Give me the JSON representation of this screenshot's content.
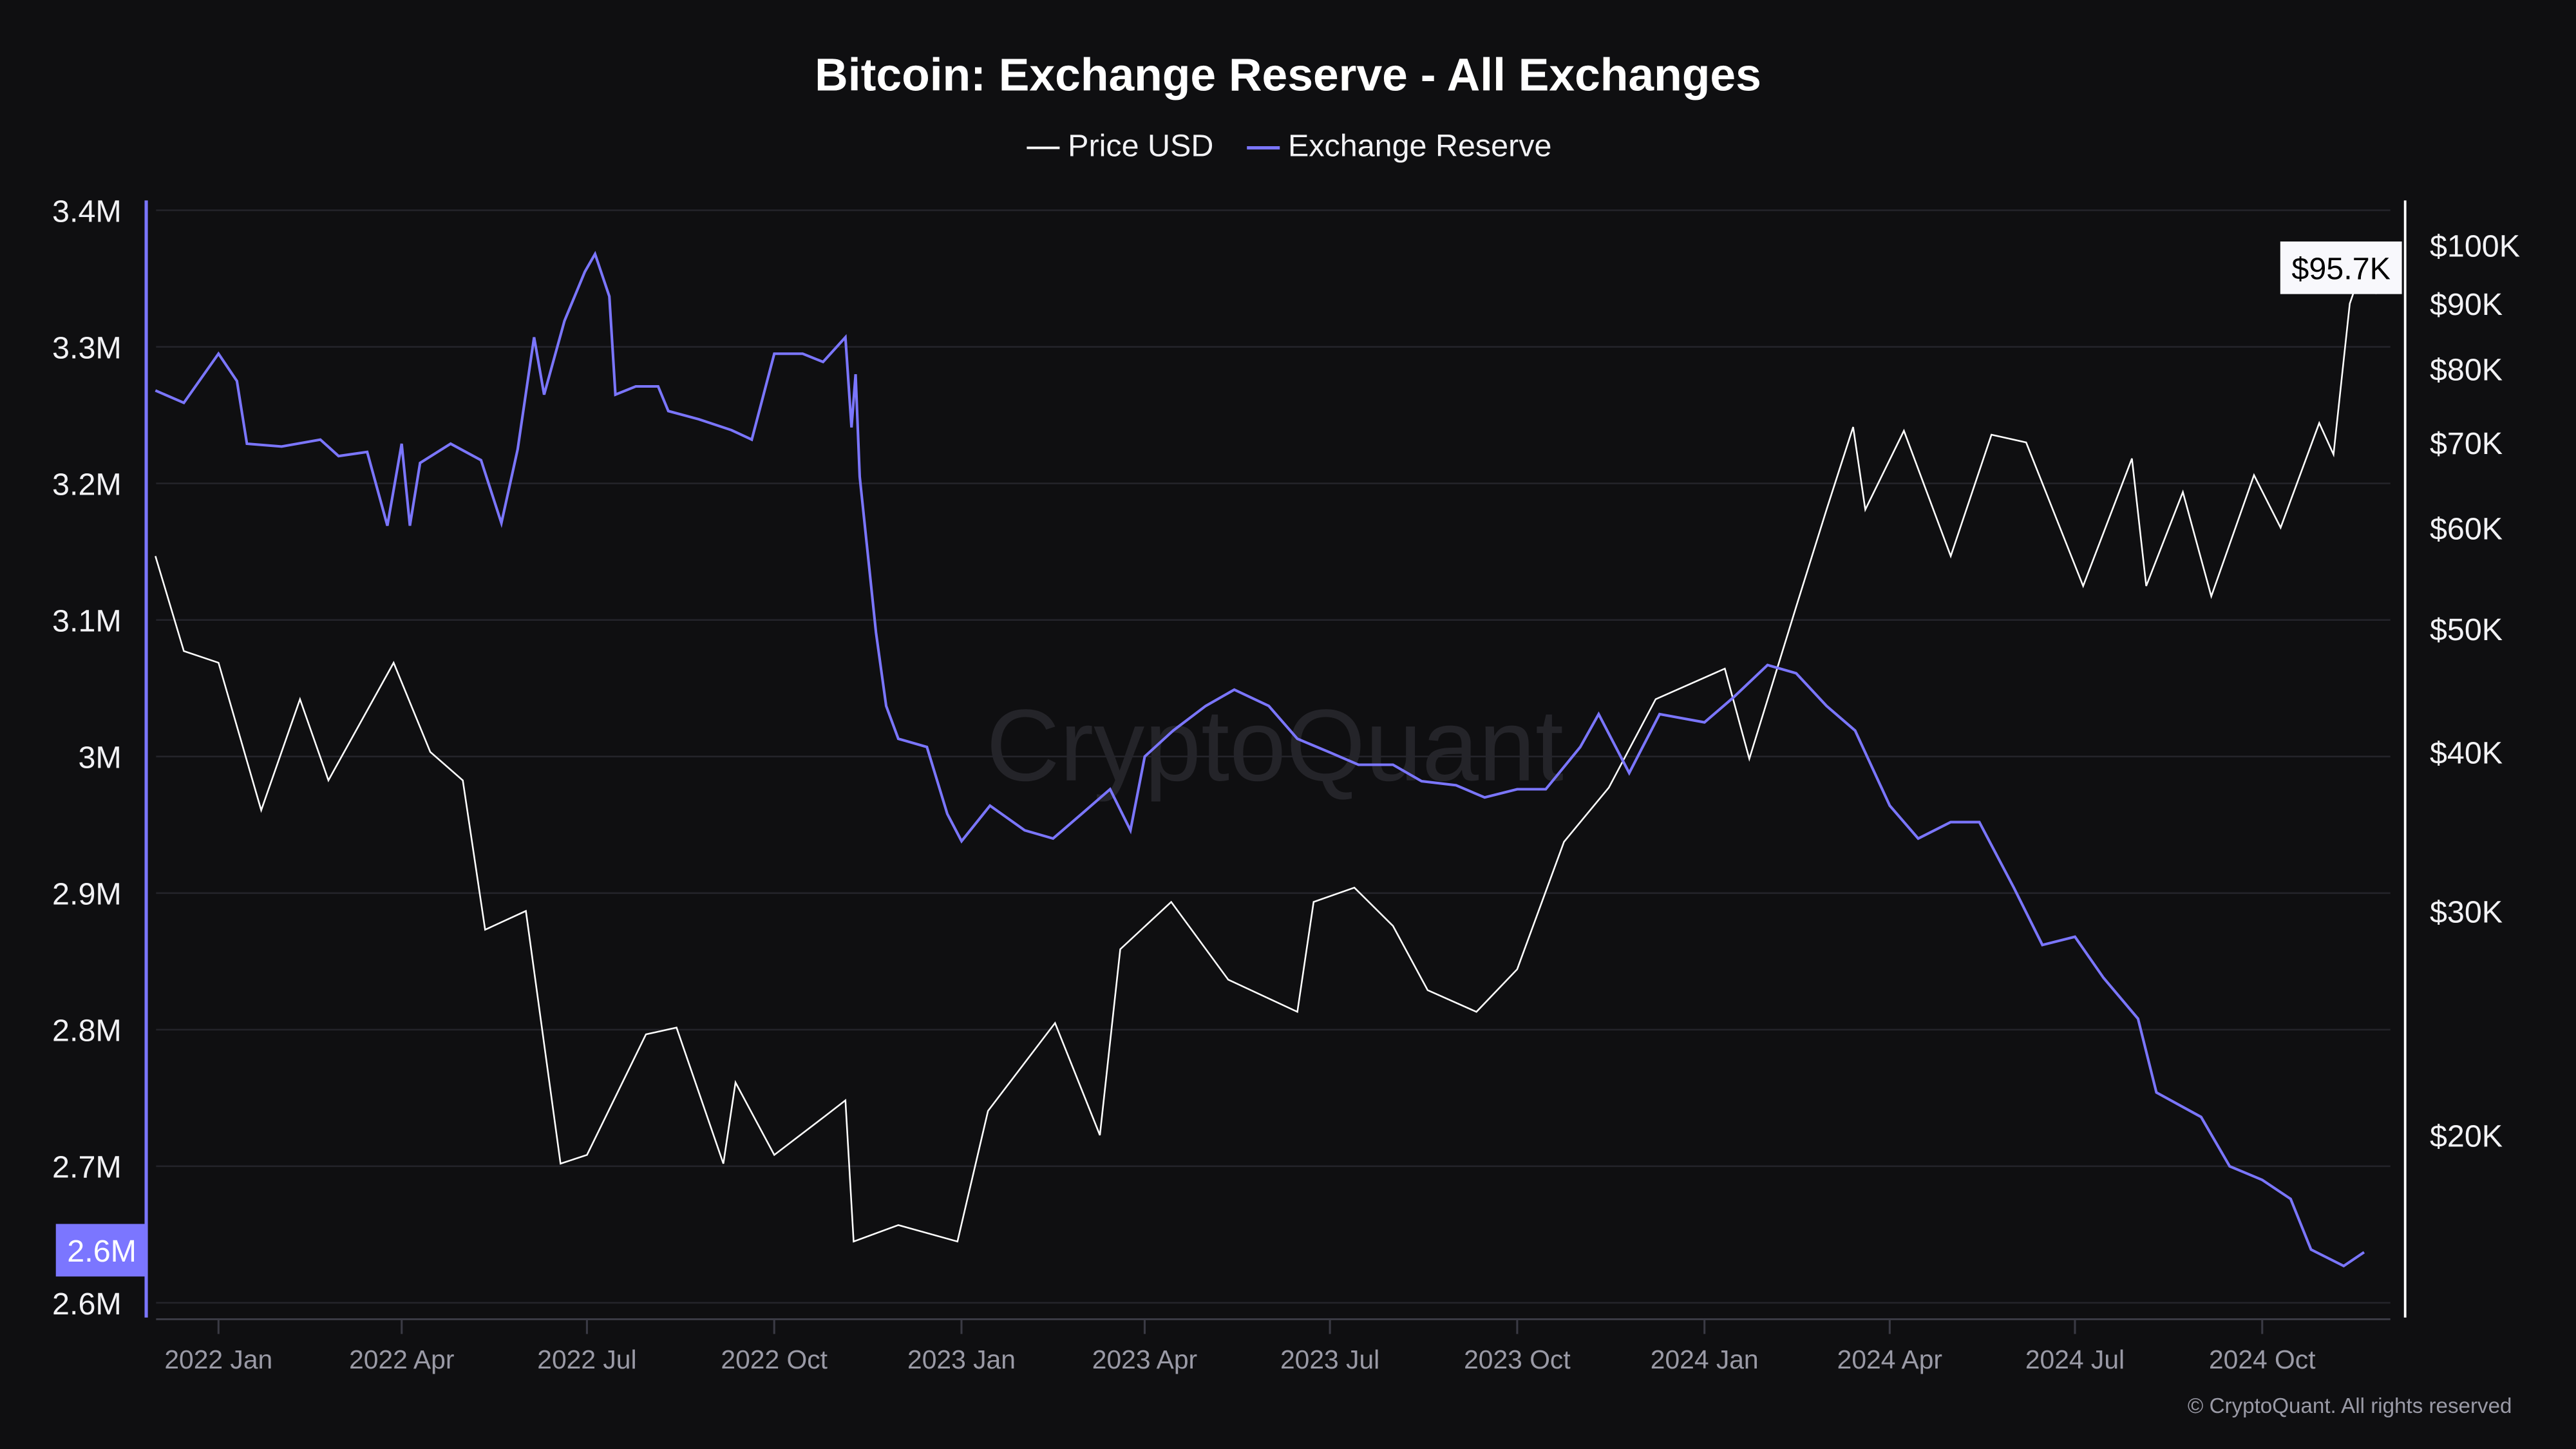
{
  "chart_data": {
    "type": "line",
    "title": "Bitcoin: Exchange Reserve - All Exchanges",
    "legend": {
      "placement": "top-center",
      "entries": [
        "Price USD",
        "Exchange Reserve"
      ]
    },
    "grid": true,
    "watermark": "CryptoQuant",
    "footer": "© CryptoQuant. All rights reserved",
    "colors": {
      "background": "#0f0f11",
      "price": "#ffffff",
      "reserve": "#7b76ff",
      "grid": "#24242a",
      "xlabels": "#9a9aa6"
    },
    "x_axis": {
      "type": "date",
      "range": [
        "2021-12-01",
        "2024-12-20"
      ],
      "ticks": [
        {
          "date": "2022-01-01",
          "label": "2022 Jan"
        },
        {
          "date": "2022-04-01",
          "label": "2022 Apr"
        },
        {
          "date": "2022-07-01",
          "label": "2022 Jul"
        },
        {
          "date": "2022-10-01",
          "label": "2022 Oct"
        },
        {
          "date": "2023-01-01",
          "label": "2023 Jan"
        },
        {
          "date": "2023-04-01",
          "label": "2023 Apr"
        },
        {
          "date": "2023-07-01",
          "label": "2023 Jul"
        },
        {
          "date": "2023-10-01",
          "label": "2023 Oct"
        },
        {
          "date": "2024-01-01",
          "label": "2024 Jan"
        },
        {
          "date": "2024-04-01",
          "label": "2024 Apr"
        },
        {
          "date": "2024-07-01",
          "label": "2024 Jul"
        },
        {
          "date": "2024-10-01",
          "label": "2024 Oct"
        }
      ]
    },
    "y_left": {
      "series": "Exchange Reserve",
      "range": [
        2.6,
        3.4
      ],
      "unit": "BTC (millions)",
      "ticks": [
        {
          "value": 3.4,
          "label": "3.4M"
        },
        {
          "value": 3.3,
          "label": "3.3M"
        },
        {
          "value": 3.2,
          "label": "3.2M"
        },
        {
          "value": 3.1,
          "label": "3.1M"
        },
        {
          "value": 3.0,
          "label": "3M"
        },
        {
          "value": 2.9,
          "label": "2.9M"
        },
        {
          "value": 2.8,
          "label": "2.8M"
        },
        {
          "value": 2.7,
          "label": "2.7M"
        },
        {
          "value": 2.6,
          "label": "2.6M"
        }
      ],
      "current_label": "2.6M"
    },
    "y_right": {
      "series": "Price USD",
      "scale": "log",
      "range": [
        13000,
        105000
      ],
      "ticks": [
        {
          "value": 100000,
          "label": "$100K"
        },
        {
          "value": 90000,
          "label": "$90K"
        },
        {
          "value": 80000,
          "label": "$80K"
        },
        {
          "value": 70000,
          "label": "$70K"
        },
        {
          "value": 60000,
          "label": "$60K"
        },
        {
          "value": 50000,
          "label": "$50K"
        },
        {
          "value": 40000,
          "label": "$40K"
        },
        {
          "value": 30000,
          "label": "$30K"
        },
        {
          "value": 20000,
          "label": "$20K"
        }
      ],
      "current_label": "$95.7K"
    },
    "series": [
      {
        "name": "Price USD",
        "axis": "right",
        "points": [
          [
            "2021-12-01",
            57000
          ],
          [
            "2021-12-15",
            48000
          ],
          [
            "2022-01-01",
            47000
          ],
          [
            "2022-01-22",
            36000
          ],
          [
            "2022-02-10",
            44000
          ],
          [
            "2022-02-24",
            38000
          ],
          [
            "2022-03-28",
            47000
          ],
          [
            "2022-04-15",
            40000
          ],
          [
            "2022-05-01",
            38000
          ],
          [
            "2022-05-12",
            29000
          ],
          [
            "2022-06-01",
            30000
          ],
          [
            "2022-06-18",
            19000
          ],
          [
            "2022-07-01",
            19300
          ],
          [
            "2022-07-30",
            24000
          ],
          [
            "2022-08-14",
            24300
          ],
          [
            "2022-09-06",
            19000
          ],
          [
            "2022-09-12",
            22000
          ],
          [
            "2022-10-01",
            19300
          ],
          [
            "2022-10-26",
            20700
          ],
          [
            "2022-11-05",
            21300
          ],
          [
            "2022-11-09",
            16500
          ],
          [
            "2022-12-01",
            17000
          ],
          [
            "2022-12-30",
            16500
          ],
          [
            "2023-01-14",
            20900
          ],
          [
            "2023-02-16",
            24500
          ],
          [
            "2023-03-10",
            20000
          ],
          [
            "2023-03-20",
            28000
          ],
          [
            "2023-04-14",
            30500
          ],
          [
            "2023-05-12",
            26500
          ],
          [
            "2023-06-15",
            25000
          ],
          [
            "2023-06-23",
            30500
          ],
          [
            "2023-07-13",
            31300
          ],
          [
            "2023-08-01",
            29200
          ],
          [
            "2023-08-18",
            26000
          ],
          [
            "2023-09-11",
            25000
          ],
          [
            "2023-10-01",
            27000
          ],
          [
            "2023-10-24",
            34000
          ],
          [
            "2023-11-15",
            37500
          ],
          [
            "2023-12-08",
            44000
          ],
          [
            "2024-01-11",
            46500
          ],
          [
            "2024-01-23",
            39500
          ],
          [
            "2024-02-15",
            52000
          ],
          [
            "2024-03-01",
            62000
          ],
          [
            "2024-03-14",
            72000
          ],
          [
            "2024-03-20",
            62000
          ],
          [
            "2024-04-08",
            71500
          ],
          [
            "2024-05-01",
            57000
          ],
          [
            "2024-05-21",
            71000
          ],
          [
            "2024-06-07",
            70000
          ],
          [
            "2024-07-05",
            54000
          ],
          [
            "2024-07-29",
            68000
          ],
          [
            "2024-08-05",
            54000
          ],
          [
            "2024-08-23",
            64000
          ],
          [
            "2024-09-06",
            53000
          ],
          [
            "2024-09-27",
            66000
          ],
          [
            "2024-10-10",
            60000
          ],
          [
            "2024-10-29",
            72500
          ],
          [
            "2024-11-05",
            68500
          ],
          [
            "2024-11-13",
            90000
          ],
          [
            "2024-11-22",
            99000
          ],
          [
            "2024-11-26",
            92000
          ],
          [
            "2024-12-01",
            97000
          ],
          [
            "2024-12-03",
            95700
          ]
        ]
      },
      {
        "name": "Exchange Reserve",
        "axis": "left",
        "points": [
          [
            "2021-12-01",
            3.268
          ],
          [
            "2021-12-15",
            3.259
          ],
          [
            "2022-01-01",
            3.295
          ],
          [
            "2022-01-10",
            3.275
          ],
          [
            "2022-01-15",
            3.229
          ],
          [
            "2022-02-01",
            3.227
          ],
          [
            "2022-02-20",
            3.232
          ],
          [
            "2022-03-01",
            3.22
          ],
          [
            "2022-03-15",
            3.223
          ],
          [
            "2022-03-25",
            3.169
          ],
          [
            "2022-04-01",
            3.229
          ],
          [
            "2022-04-05",
            3.169
          ],
          [
            "2022-04-10",
            3.215
          ],
          [
            "2022-04-25",
            3.229
          ],
          [
            "2022-05-10",
            3.217
          ],
          [
            "2022-05-20",
            3.171
          ],
          [
            "2022-05-28",
            3.225
          ],
          [
            "2022-06-05",
            3.307
          ],
          [
            "2022-06-10",
            3.265
          ],
          [
            "2022-06-20",
            3.319
          ],
          [
            "2022-06-30",
            3.355
          ],
          [
            "2022-07-05",
            3.368
          ],
          [
            "2022-07-12",
            3.337
          ],
          [
            "2022-07-15",
            3.265
          ],
          [
            "2022-07-25",
            3.271
          ],
          [
            "2022-08-05",
            3.271
          ],
          [
            "2022-08-10",
            3.253
          ],
          [
            "2022-08-25",
            3.247
          ],
          [
            "2022-09-10",
            3.239
          ],
          [
            "2022-09-20",
            3.232
          ],
          [
            "2022-10-01",
            3.295
          ],
          [
            "2022-10-15",
            3.295
          ],
          [
            "2022-10-25",
            3.289
          ],
          [
            "2022-11-05",
            3.307
          ],
          [
            "2022-11-08",
            3.241
          ],
          [
            "2022-11-10",
            3.28
          ],
          [
            "2022-11-12",
            3.205
          ],
          [
            "2022-11-20",
            3.091
          ],
          [
            "2022-11-25",
            3.037
          ],
          [
            "2022-12-01",
            3.013
          ],
          [
            "2022-12-15",
            3.007
          ],
          [
            "2022-12-25",
            2.958
          ],
          [
            "2023-01-01",
            2.938
          ],
          [
            "2023-01-15",
            2.964
          ],
          [
            "2023-02-01",
            2.946
          ],
          [
            "2023-02-15",
            2.94
          ],
          [
            "2023-03-01",
            2.958
          ],
          [
            "2023-03-15",
            2.976
          ],
          [
            "2023-03-25",
            2.946
          ],
          [
            "2023-04-01",
            3.0
          ],
          [
            "2023-04-15",
            3.019
          ],
          [
            "2023-05-01",
            3.037
          ],
          [
            "2023-05-15",
            3.049
          ],
          [
            "2023-06-01",
            3.037
          ],
          [
            "2023-06-15",
            3.013
          ],
          [
            "2023-07-01",
            3.003
          ],
          [
            "2023-07-15",
            2.994
          ],
          [
            "2023-08-01",
            2.994
          ],
          [
            "2023-08-15",
            2.982
          ],
          [
            "2023-09-01",
            2.979
          ],
          [
            "2023-09-15",
            2.97
          ],
          [
            "2023-10-01",
            2.976
          ],
          [
            "2023-10-15",
            2.976
          ],
          [
            "2023-11-01",
            3.007
          ],
          [
            "2023-11-10",
            3.031
          ],
          [
            "2023-11-25",
            2.988
          ],
          [
            "2023-12-10",
            3.031
          ],
          [
            "2024-01-01",
            3.025
          ],
          [
            "2024-01-15",
            3.043
          ],
          [
            "2024-02-01",
            3.067
          ],
          [
            "2024-02-15",
            3.061
          ],
          [
            "2024-03-01",
            3.037
          ],
          [
            "2024-03-15",
            3.019
          ],
          [
            "2024-04-01",
            2.964
          ],
          [
            "2024-04-15",
            2.94
          ],
          [
            "2024-05-01",
            2.952
          ],
          [
            "2024-05-15",
            2.952
          ],
          [
            "2024-06-01",
            2.904
          ],
          [
            "2024-06-15",
            2.862
          ],
          [
            "2024-07-01",
            2.868
          ],
          [
            "2024-07-15",
            2.838
          ],
          [
            "2024-08-01",
            2.808
          ],
          [
            "2024-08-10",
            2.754
          ],
          [
            "2024-09-01",
            2.736
          ],
          [
            "2024-09-15",
            2.7
          ],
          [
            "2024-10-01",
            2.69
          ],
          [
            "2024-10-15",
            2.676
          ],
          [
            "2024-10-25",
            2.639
          ],
          [
            "2024-11-10",
            2.627
          ],
          [
            "2024-11-20",
            2.637
          ]
        ]
      }
    ]
  }
}
